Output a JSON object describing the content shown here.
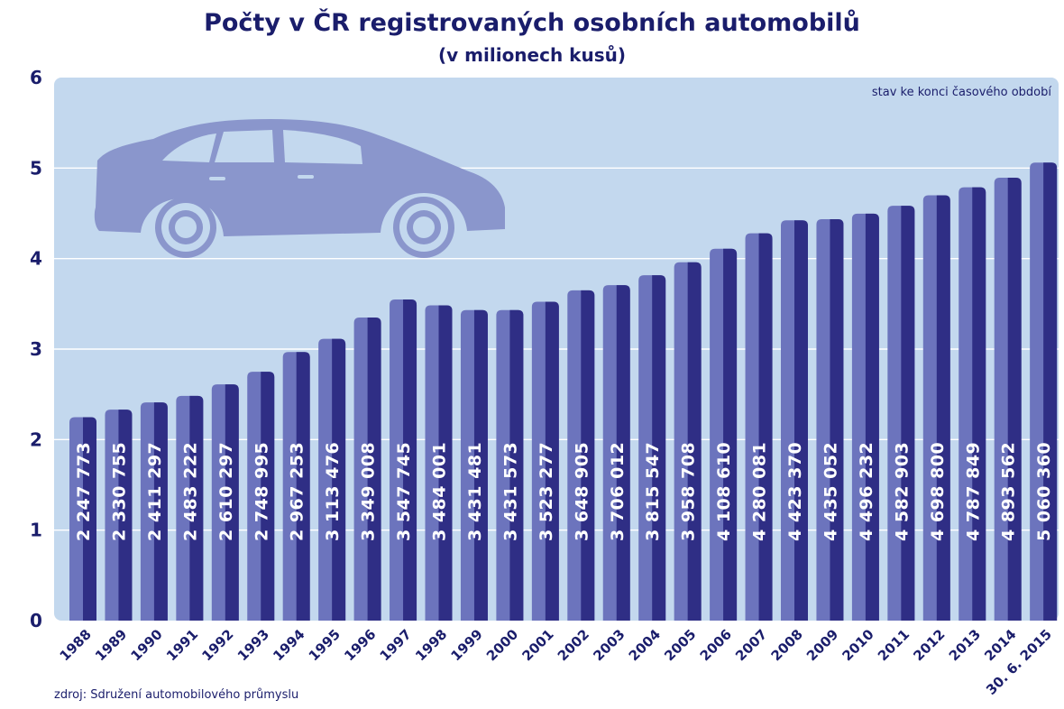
{
  "chart_data": {
    "type": "bar",
    "title": "Počty v ČR registrovaných osobních automobilů",
    "subtitle": "(v milionech kusů)",
    "annotation": "stav ke konci časového období",
    "source": "zdroj: Sdružení automobilového průmyslu",
    "categories": [
      "1988",
      "1989",
      "1990",
      "1991",
      "1992",
      "1993",
      "1994",
      "1995",
      "1996",
      "1997",
      "1998",
      "1999",
      "2000",
      "2001",
      "2002",
      "2003",
      "2004",
      "2005",
      "2006",
      "2007",
      "2008",
      "2009",
      "2010",
      "2011",
      "2012",
      "2013",
      "2014",
      "30. 6. 2015"
    ],
    "values": [
      2.247773,
      2.330755,
      2.411297,
      2.483222,
      2.610297,
      2.748995,
      2.967253,
      3.113476,
      3.349008,
      3.547745,
      3.484001,
      3.431481,
      3.431573,
      3.523277,
      3.648905,
      3.706012,
      3.815547,
      3.958708,
      4.10861,
      4.280081,
      4.42337,
      4.435052,
      4.496232,
      4.582903,
      4.6988,
      4.787849,
      4.893562,
      5.06036
    ],
    "value_labels": [
      "2 247 773",
      "2 330 755",
      "2 411 297",
      "2 483 222",
      "2 610 297",
      "2 748 995",
      "2 967 253",
      "3 113 476",
      "3 349 008",
      "3 547 745",
      "3 484 001",
      "3 431 481",
      "3 431 573",
      "3 523 277",
      "3 648 905",
      "3 706 012",
      "3 815 547",
      "3 958 708",
      "4 108 610",
      "4 280 081",
      "4 423 370",
      "4 435 052",
      "4 496 232",
      "4 582 903",
      "4 698 800",
      "4 787 849",
      "4 893 562",
      "5 060 360"
    ],
    "yticks": [
      "0",
      "1",
      "2",
      "3",
      "4",
      "5",
      "6"
    ],
    "ylim": [
      0,
      6
    ],
    "grid": true,
    "legend": "none",
    "colors": {
      "background": "#c3d8ee",
      "bar_light": "#6c74bd",
      "bar_dark": "#2f2e85",
      "text": "#1a1d6b",
      "car": "#8a96cc",
      "grid": "#ffffff"
    },
    "decoration_icon": "car-icon"
  }
}
